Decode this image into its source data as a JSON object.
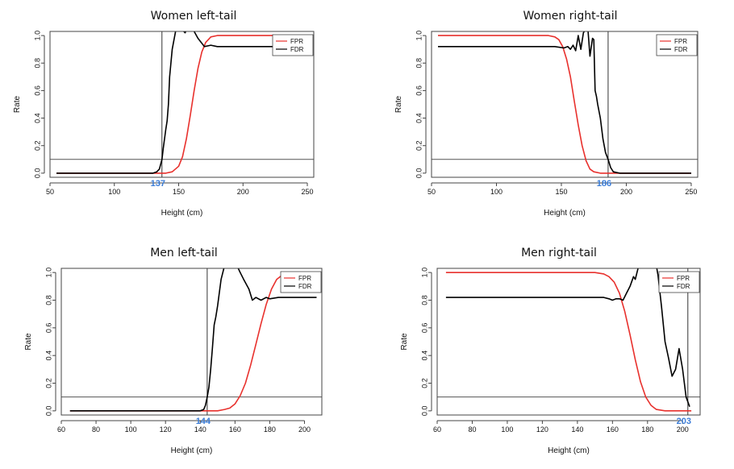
{
  "chart_data": [
    {
      "type": "line",
      "title": "Women left-tail",
      "xlabel": "Height  (cm)",
      "ylabel": "Rate",
      "xlim": [
        50,
        255
      ],
      "ylim": [
        -0.03,
        1.03
      ],
      "xticks": [
        50,
        100,
        150,
        200,
        250
      ],
      "xtick_labels": [
        "50",
        "100",
        "150",
        "200",
        "250"
      ],
      "yticks": [
        0,
        0.2,
        0.4,
        0.6,
        0.8,
        1
      ],
      "ytick_labels": [
        "0.0",
        "0.2",
        "0.4",
        "0.6",
        "0.8",
        "1.0"
      ],
      "threshold": 137,
      "threshold_label": "137",
      "hline": 0.1,
      "legend": {
        "position": "top-right",
        "entries": [
          "FPR",
          "FDR"
        ]
      },
      "colors": {
        "FPR": "#e8312d",
        "FDR": "#000000",
        "threshold_label": "#3b7dd8"
      },
      "series": [
        {
          "name": "FPR",
          "x": [
            55,
            140,
            145,
            150,
            153,
            156,
            159,
            162,
            165,
            168,
            171,
            175,
            180,
            200,
            250
          ],
          "y": [
            0,
            0,
            0.01,
            0.05,
            0.12,
            0.25,
            0.42,
            0.6,
            0.76,
            0.88,
            0.95,
            0.99,
            1,
            1,
            1
          ]
        },
        {
          "name": "FDR",
          "x": [
            55,
            130,
            133,
            135,
            137,
            138,
            139,
            140,
            141,
            142,
            143,
            145,
            148,
            150,
            152,
            155,
            158,
            162,
            165,
            170,
            175,
            180,
            200,
            250
          ],
          "y": [
            0,
            0,
            0.01,
            0.03,
            0.1,
            0.18,
            0.25,
            0.32,
            0.38,
            0.5,
            0.7,
            0.9,
            1.05,
            1.1,
            1.05,
            1.02,
            1.08,
            1.03,
            0.98,
            0.92,
            0.93,
            0.92,
            0.92,
            0.92
          ]
        }
      ]
    },
    {
      "type": "line",
      "title": "Women right-tail",
      "xlabel": "Height  (cm)",
      "ylabel": "Rate",
      "xlim": [
        50,
        255
      ],
      "ylim": [
        -0.03,
        1.03
      ],
      "xticks": [
        50,
        100,
        150,
        200,
        250
      ],
      "xtick_labels": [
        "50",
        "100",
        "150",
        "200",
        "250"
      ],
      "yticks": [
        0,
        0.2,
        0.4,
        0.6,
        0.8,
        1
      ],
      "ytick_labels": [
        "0.0",
        "0.2",
        "0.4",
        "0.6",
        "0.8",
        "1.0"
      ],
      "threshold": 186,
      "threshold_label": "186",
      "hline": 0.1,
      "legend": {
        "position": "top-right",
        "entries": [
          "FPR",
          "FDR"
        ]
      },
      "colors": {
        "FPR": "#e8312d",
        "FDR": "#000000",
        "threshold_label": "#3b7dd8"
      },
      "series": [
        {
          "name": "FPR",
          "x": [
            55,
            140,
            145,
            148,
            151,
            154,
            157,
            160,
            163,
            166,
            169,
            172,
            175,
            180,
            250
          ],
          "y": [
            1,
            1,
            0.99,
            0.97,
            0.92,
            0.83,
            0.7,
            0.52,
            0.35,
            0.2,
            0.09,
            0.03,
            0.01,
            0,
            0
          ]
        },
        {
          "name": "FDR",
          "x": [
            55,
            145,
            152,
            155,
            157,
            159,
            161,
            163,
            165,
            167,
            169,
            170,
            172,
            174,
            175,
            176,
            177,
            178,
            180,
            182,
            184,
            186,
            188,
            190,
            195,
            200,
            250
          ],
          "y": [
            0.92,
            0.92,
            0.91,
            0.92,
            0.9,
            0.93,
            0.89,
            1.0,
            0.9,
            1.02,
            1.05,
            1.1,
            0.85,
            0.98,
            0.97,
            0.6,
            0.56,
            0.5,
            0.4,
            0.25,
            0.15,
            0.1,
            0.04,
            0.01,
            0,
            0,
            0
          ]
        }
      ]
    },
    {
      "type": "line",
      "title": "Men left-tail",
      "xlabel": "Height  (cm)",
      "ylabel": "Rate",
      "xlim": [
        60,
        210
      ],
      "ylim": [
        -0.03,
        1.03
      ],
      "xticks": [
        60,
        80,
        100,
        120,
        140,
        160,
        180,
        200
      ],
      "xtick_labels": [
        "60",
        "80",
        "100",
        "120",
        "140",
        "160",
        "180",
        "200"
      ],
      "yticks": [
        0,
        0.2,
        0.4,
        0.6,
        0.8,
        1
      ],
      "ytick_labels": [
        "0.0",
        "0.2",
        "0.4",
        "0.6",
        "0.8",
        "1.0"
      ],
      "threshold": 144,
      "threshold_label": "144",
      "hline": 0.1,
      "legend": {
        "position": "top-right",
        "entries": [
          "FPR",
          "FDR"
        ]
      },
      "colors": {
        "FPR": "#e8312d",
        "FDR": "#000000",
        "threshold_label": "#3b7dd8"
      },
      "series": [
        {
          "name": "FPR",
          "x": [
            65,
            150,
            154,
            157,
            160,
            163,
            166,
            169,
            172,
            175,
            178,
            181,
            184,
            187,
            190,
            207
          ],
          "y": [
            0,
            0,
            0.01,
            0.02,
            0.05,
            0.11,
            0.2,
            0.33,
            0.48,
            0.63,
            0.77,
            0.88,
            0.95,
            0.98,
            1,
            1
          ]
        },
        {
          "name": "FDR",
          "x": [
            65,
            140,
            142,
            143,
            144,
            145,
            146,
            147,
            148,
            149,
            150,
            152,
            155,
            158,
            160,
            163,
            165,
            168,
            170,
            172,
            175,
            178,
            180,
            185,
            190,
            207
          ],
          "y": [
            0,
            0,
            0.01,
            0.04,
            0.1,
            0.17,
            0.3,
            0.45,
            0.62,
            0.68,
            0.76,
            0.95,
            1.1,
            1.15,
            1.08,
            1.0,
            0.95,
            0.88,
            0.8,
            0.82,
            0.8,
            0.82,
            0.81,
            0.82,
            0.82,
            0.82
          ]
        }
      ]
    },
    {
      "type": "line",
      "title": "Men right-tail",
      "xlabel": "Height  (cm)",
      "ylabel": "Rate",
      "xlim": [
        60,
        210
      ],
      "ylim": [
        -0.03,
        1.03
      ],
      "xticks": [
        60,
        80,
        100,
        120,
        140,
        160,
        180,
        200
      ],
      "xtick_labels": [
        "60",
        "80",
        "100",
        "120",
        "140",
        "160",
        "180",
        "200"
      ],
      "yticks": [
        0,
        0.2,
        0.4,
        0.6,
        0.8,
        1
      ],
      "ytick_labels": [
        "0.0",
        "0.2",
        "0.4",
        "0.6",
        "0.8",
        "1.0"
      ],
      "threshold": 203,
      "threshold_label": "203",
      "hline": 0.1,
      "legend": {
        "position": "top-right",
        "entries": [
          "FPR",
          "FDR"
        ]
      },
      "colors": {
        "FPR": "#e8312d",
        "FDR": "#000000",
        "threshold_label": "#3b7dd8"
      },
      "series": [
        {
          "name": "FPR",
          "x": [
            65,
            150,
            155,
            158,
            161,
            164,
            167,
            170,
            173,
            176,
            179,
            182,
            185,
            190,
            205
          ],
          "y": [
            1,
            1,
            0.99,
            0.97,
            0.93,
            0.85,
            0.72,
            0.55,
            0.37,
            0.21,
            0.1,
            0.04,
            0.01,
            0,
            0
          ]
        },
        {
          "name": "FDR",
          "x": [
            65,
            150,
            155,
            158,
            160,
            162,
            164,
            166,
            168,
            170,
            172,
            173,
            175,
            178,
            180,
            183,
            185,
            186,
            188,
            190,
            192,
            194,
            196,
            198,
            200,
            202,
            204
          ],
          "y": [
            0.82,
            0.82,
            0.82,
            0.81,
            0.8,
            0.81,
            0.81,
            0.8,
            0.85,
            0.9,
            0.97,
            0.95,
            1.05,
            1.1,
            1.08,
            1.1,
            1.05,
            0.98,
            0.75,
            0.5,
            0.38,
            0.25,
            0.3,
            0.45,
            0.3,
            0.1,
            0.03
          ]
        }
      ]
    }
  ]
}
